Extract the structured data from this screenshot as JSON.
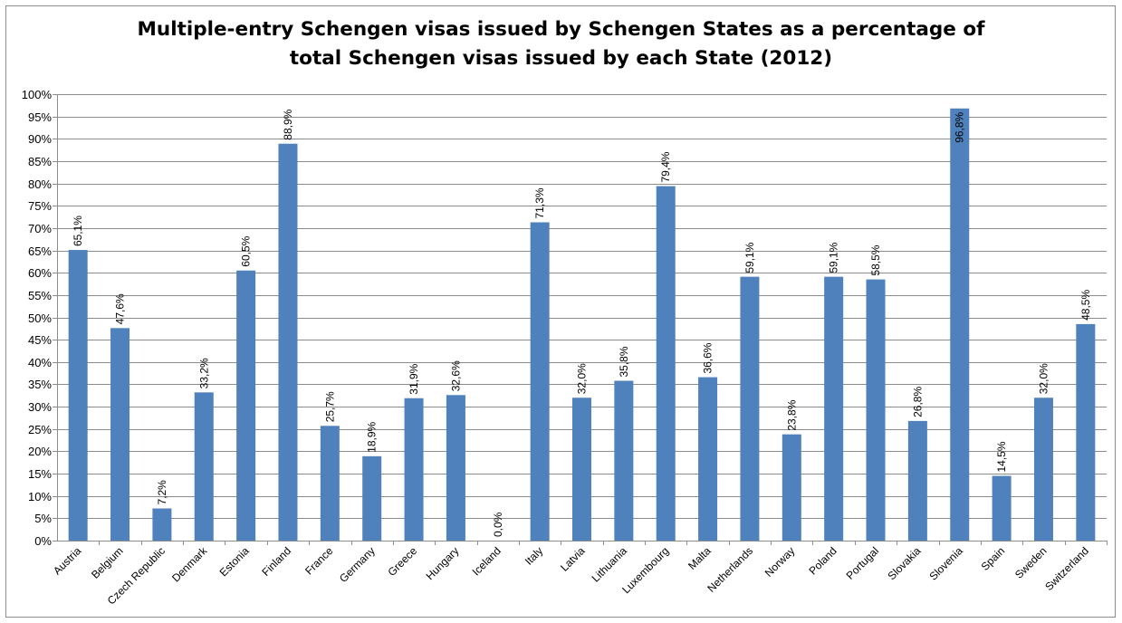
{
  "chart_data": {
    "type": "bar",
    "title_line1": "Multiple-entry Schengen visas issued by Schengen States as a percentage of",
    "title_line2": "total Schengen visas issued by each State (2012)",
    "xlabel": "",
    "ylabel": "",
    "ylim": [
      0,
      100
    ],
    "ytick_step": 5,
    "yticks": [
      "0%",
      "5%",
      "10%",
      "15%",
      "20%",
      "25%",
      "30%",
      "35%",
      "40%",
      "45%",
      "50%",
      "55%",
      "60%",
      "65%",
      "70%",
      "75%",
      "80%",
      "85%",
      "90%",
      "95%",
      "100%"
    ],
    "grid": true,
    "legend": "none",
    "bar_color": "#4f81bd",
    "categories": [
      "Austria",
      "Belgium",
      "Czech Republic",
      "Denmark",
      "Estonia",
      "Finland",
      "France",
      "Germany",
      "Greece",
      "Hungary",
      "Iceland",
      "Italy",
      "Latvia",
      "Lithuania",
      "Luxembourg",
      "Malta",
      "Netherlands",
      "Norway",
      "Poland",
      "Portugal",
      "Slovakia",
      "Slovenia",
      "Spain",
      "Sweden",
      "Switzerland"
    ],
    "values": [
      65.1,
      47.6,
      7.2,
      33.2,
      60.5,
      88.9,
      25.7,
      18.9,
      31.9,
      32.6,
      0.0,
      71.3,
      32.0,
      35.8,
      79.4,
      36.6,
      59.1,
      23.8,
      59.1,
      58.5,
      26.8,
      96.8,
      14.5,
      32.0,
      48.5
    ],
    "data_labels": [
      "65,1%",
      "47,6%",
      "7,2%",
      "33,2%",
      "60,5%",
      "88,9%",
      "25,7%",
      "18,9%",
      "31,9%",
      "32,6%",
      "0,0%",
      "71,3%",
      "32,0%",
      "35,8%",
      "79,4%",
      "36,6%",
      "59,1%",
      "23,8%",
      "59,1%",
      "58,5%",
      "26,8%",
      "96,8%",
      "14,5%",
      "32,0%",
      "48,5%"
    ]
  }
}
